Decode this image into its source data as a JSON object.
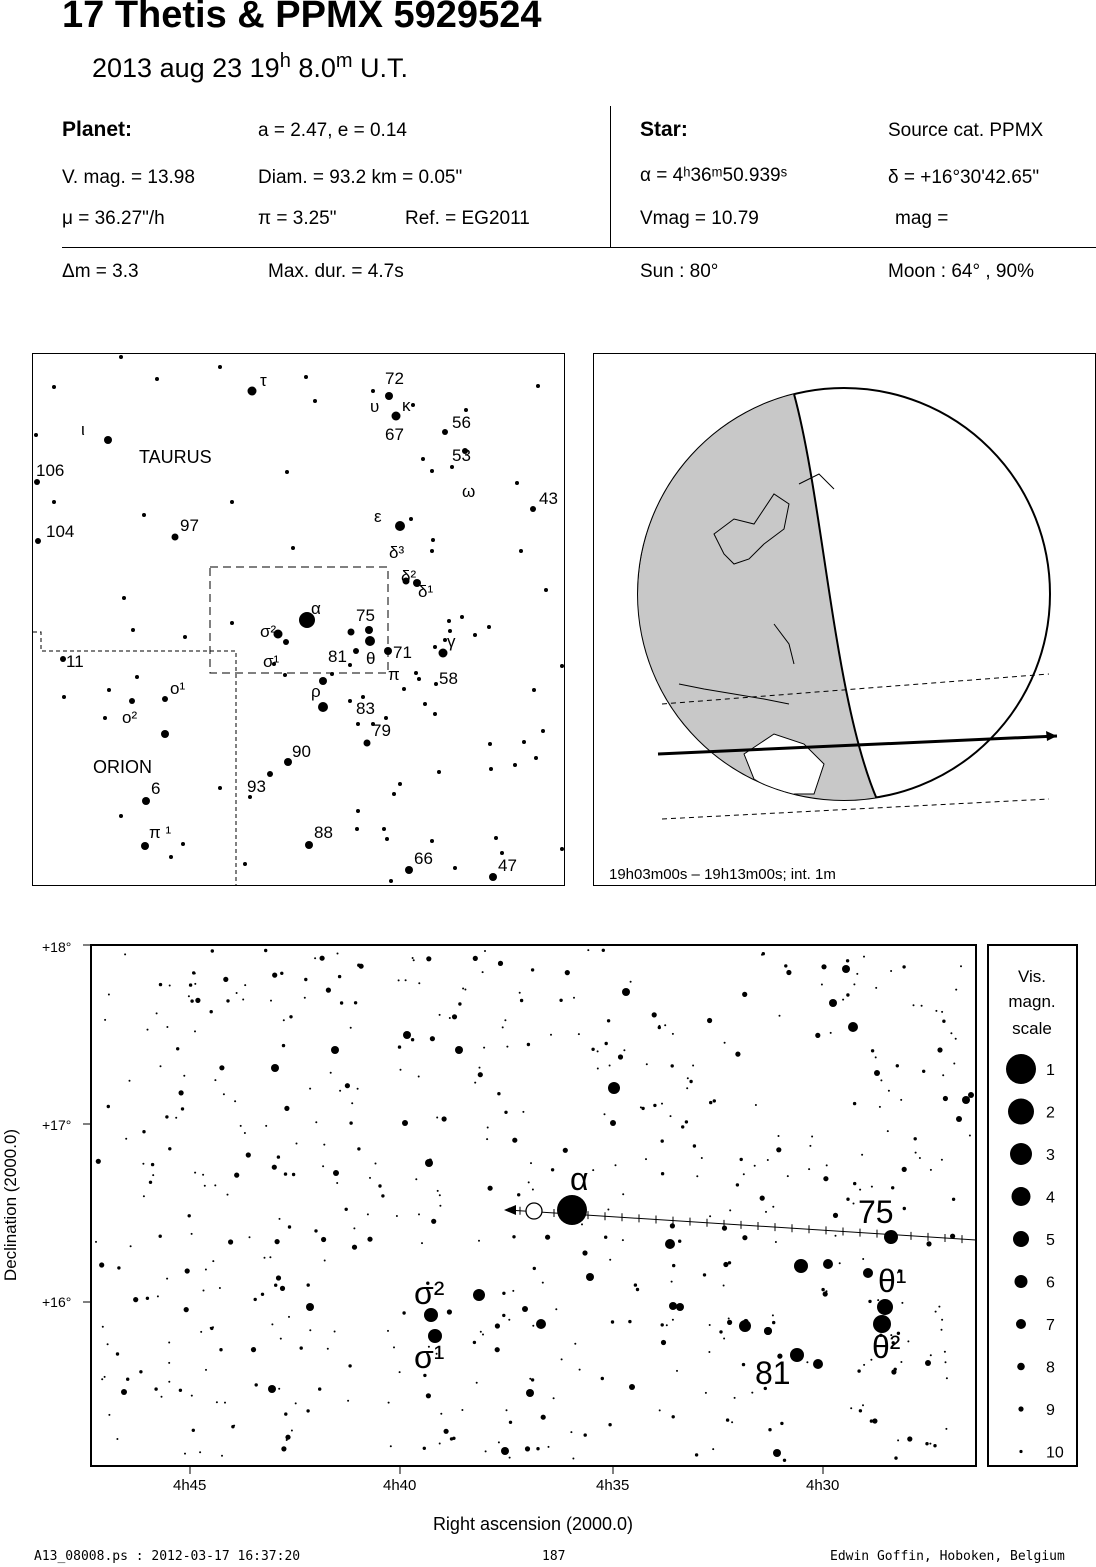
{
  "header": {
    "title": "17 Thetis  &  PPMX 5929524",
    "date_text": "2013 aug 23  19",
    "hour_sup": "h",
    "minutes": " 8.0",
    "min_sup": "m",
    "ut": " U.T."
  },
  "planet": {
    "heading": "Planet:",
    "orbit": "a = 2.47, e = 0.14",
    "vmag": "V. mag. = 13.98",
    "diam": "Diam. = 93.2 km = 0.05\"",
    "mu": "μ =  36.27\"/h",
    "pi": "π =  3.25\"",
    "ref": "Ref. = EG2011"
  },
  "star": {
    "heading": "Star:",
    "source": "Source cat.  PPMX",
    "alpha": "α =  4ʰ36ᵐ50.939ˢ",
    "delta": "δ = +16°30'42.65\"",
    "vmag": "Vmag = 10.79",
    "mag": "mag ="
  },
  "summary": {
    "dm": "Δm = 3.3",
    "maxdur": "Max. dur. = 4.7s",
    "sun": "Sun :  80°",
    "moon": "Moon :  64° , 90%"
  },
  "finder": {
    "constellations": [
      "TAURUS",
      "ORION"
    ],
    "labels": [
      "τ",
      "72",
      "υ",
      "κ",
      "67",
      "56",
      "53",
      "ω",
      "43",
      "ι",
      "106",
      "104",
      "97",
      "ε",
      "δ³",
      "δ²",
      "δ¹",
      "α",
      "75",
      "σ²",
      "σ¹",
      "81",
      "θ",
      "71",
      "π",
      "γ",
      "58",
      "11",
      "ο¹",
      "ο²",
      "ρ",
      "83",
      "79",
      "90",
      "93",
      "6",
      "π ¹",
      "88",
      "66",
      "47"
    ]
  },
  "globe": {
    "caption": "19h03m00s – 19h13m00s; int.  1m"
  },
  "chart": {
    "dec_labels": [
      "+18°",
      "+17°",
      "+16°"
    ],
    "ra_labels": [
      "4h45",
      "4h40",
      "4h35",
      "4h30"
    ],
    "ylabel": "Declination (2000.0)",
    "xlabel": "Right ascension (2000.0)",
    "star_labels": [
      "α",
      "75",
      "θ¹",
      "θ²",
      "σ²",
      "σ¹",
      "81"
    ]
  },
  "legend": {
    "title_lines": [
      "Vis.",
      "magn.",
      "scale"
    ],
    "items": [
      "1",
      "2",
      "3",
      "4",
      "5",
      "6",
      "7",
      "8",
      "9",
      "10"
    ]
  },
  "footer": {
    "left": "A13_08008.ps : 2012-03-17 16:37:20",
    "center": "187",
    "right": "Edwin Goffin, Hoboken, Belgium"
  }
}
